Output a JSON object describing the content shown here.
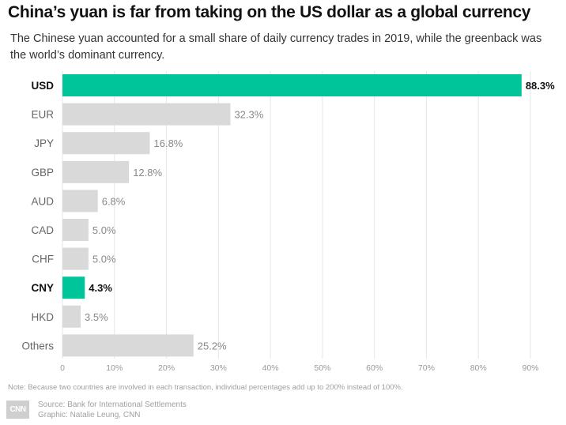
{
  "header": {
    "title": "China’s yuan is far from taking on the US dollar as a global currency",
    "subtitle": "The Chinese yuan accounted for a small share of daily currency trades in 2019, while the greenback was the world’s dominant currency."
  },
  "chart_data": {
    "type": "bar",
    "orientation": "horizontal",
    "categories": [
      "USD",
      "EUR",
      "JPY",
      "GBP",
      "AUD",
      "CAD",
      "CHF",
      "CNY",
      "HKD",
      "Others"
    ],
    "values": [
      88.3,
      32.3,
      16.8,
      12.8,
      6.8,
      5.0,
      5.0,
      4.3,
      3.5,
      25.2
    ],
    "value_labels": [
      "88.3%",
      "32.3%",
      "16.8%",
      "12.8%",
      "6.8%",
      "5.0%",
      "5.0%",
      "4.3%",
      "3.5%",
      "25.2%"
    ],
    "highlighted": [
      "USD",
      "CNY"
    ],
    "xlim": [
      0,
      90
    ],
    "xticks": [
      0,
      10,
      20,
      30,
      40,
      50,
      60,
      70,
      80,
      90
    ],
    "xtick_labels": [
      "0",
      "10%",
      "20%",
      "30%",
      "40%",
      "50%",
      "60%",
      "70%",
      "80%",
      "90%"
    ],
    "grid": true,
    "colors": {
      "highlight": "#00c59b",
      "default": "#d9d9d9",
      "grid": "#e6e6e6"
    }
  },
  "footer": {
    "note": "Note: Because two countries are involved in each transaction, individual percentages add up to 200% instead of 100%.",
    "logo": "CNN",
    "source": "Source: Bank for International Settlements",
    "graphic": "Graphic: Natalie Leung, CNN"
  }
}
